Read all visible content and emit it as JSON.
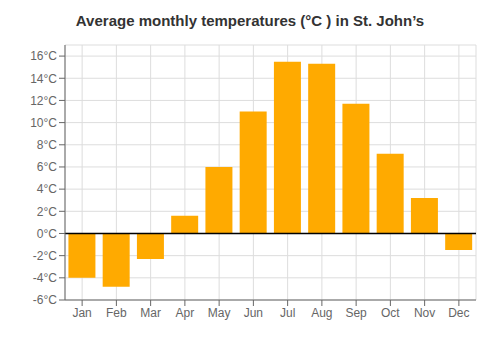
{
  "chart_data": {
    "type": "bar",
    "title": "Average monthly temperatures (°C ) in St. John’s",
    "categories": [
      "Jan",
      "Feb",
      "Mar",
      "Apr",
      "May",
      "Jun",
      "Jul",
      "Aug",
      "Sep",
      "Oct",
      "Nov",
      "Dec"
    ],
    "values": [
      -4.0,
      -4.8,
      -2.3,
      1.6,
      6.0,
      11.0,
      15.5,
      15.3,
      11.7,
      7.2,
      3.2,
      -1.5
    ],
    "color": "#FFAA00",
    "ylim": [
      -6,
      17
    ],
    "yticks": [
      {
        "value": -6,
        "label": "-6°C"
      },
      {
        "value": -4,
        "label": "-4°C"
      },
      {
        "value": -2,
        "label": "-2°C"
      },
      {
        "value": 0,
        "label": "0°C"
      },
      {
        "value": 2,
        "label": "2°C"
      },
      {
        "value": 4,
        "label": "4°C"
      },
      {
        "value": 6,
        "label": "6°C"
      },
      {
        "value": 8,
        "label": "8°C"
      },
      {
        "value": 10,
        "label": "10°C"
      },
      {
        "value": 12,
        "label": "12°C"
      },
      {
        "value": 14,
        "label": "14°C"
      },
      {
        "value": 16,
        "label": "16°C"
      }
    ],
    "grid": true
  }
}
